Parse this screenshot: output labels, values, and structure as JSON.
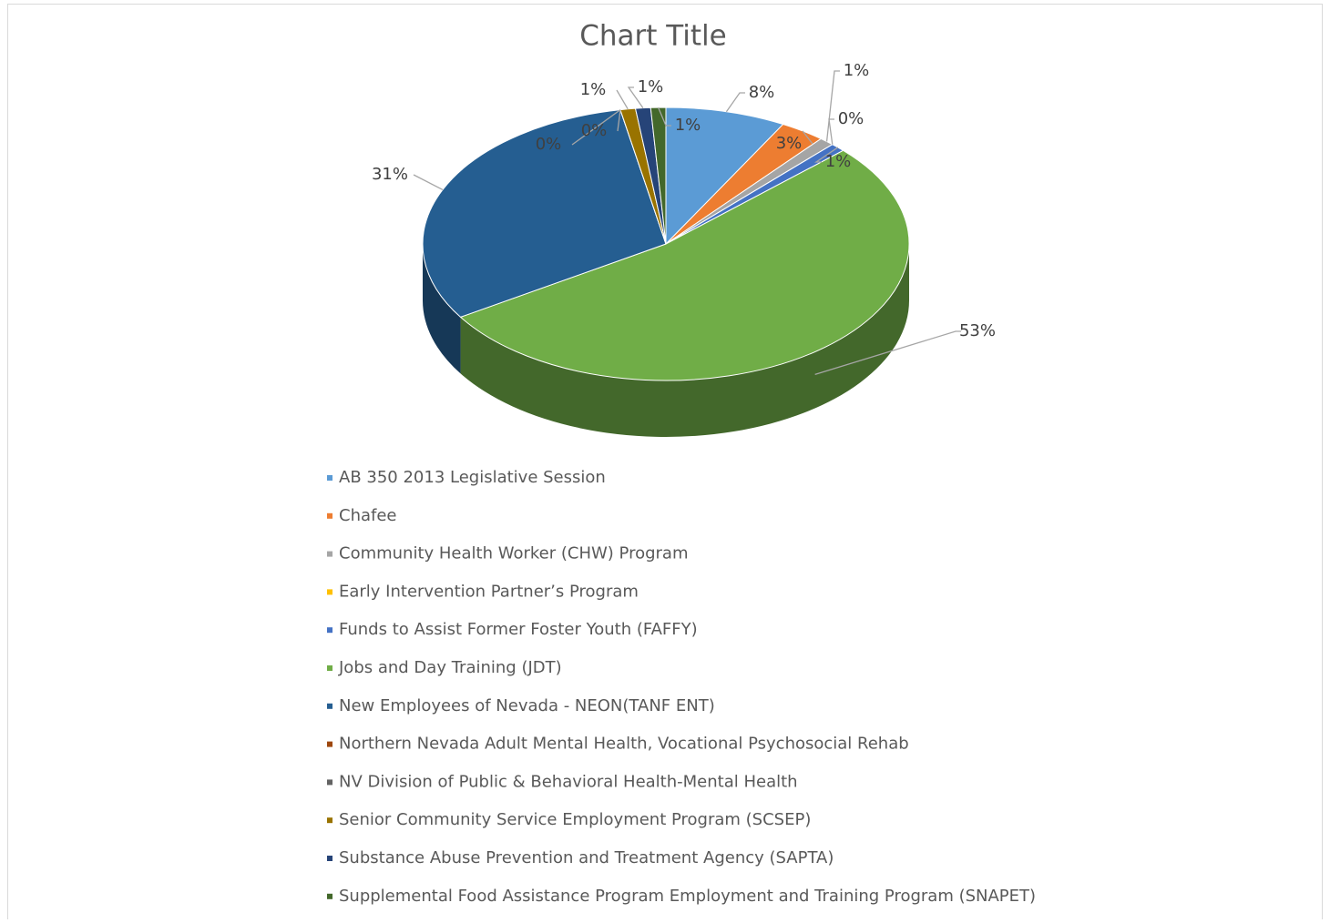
{
  "chart_data": {
    "type": "pie3d",
    "title": "Chart Title",
    "categories": [
      "AB 350 2013 Legislative Session",
      "Chafee",
      "Community Health Worker (CHW) Program",
      "Early Intervention Partner’s Program",
      "Funds to Assist Former Foster Youth (FAFFY)",
      "Jobs and Day Training (JDT)",
      "New Employees of Nevada - NEON(TANF ENT)",
      "Northern Nevada Adult Mental Health, Vocational Psychosocial Rehab",
      "NV Division of Public & Behavioral Health-Mental Health",
      "Senior Community Service Employment Program (SCSEP)",
      "Substance Abuse Prevention and Treatment Agency (SAPTA)",
      "Supplemental Food Assistance Program Employment and Training Program (SNAPET)"
    ],
    "values": [
      8,
      3,
      1,
      0,
      1,
      53,
      31,
      0,
      0,
      1,
      1,
      1
    ],
    "value_labels": [
      "8%",
      "3%",
      "1%",
      "0%",
      "1%",
      "53%",
      "31%",
      "0%",
      "0%",
      "1%",
      "1%",
      "1%"
    ],
    "colors": [
      "#5b9bd5",
      "#ed7d31",
      "#a5a5a5",
      "#ffc000",
      "#4472c4",
      "#70ad47",
      "#255e91",
      "#9e480e",
      "#636363",
      "#997300",
      "#264478",
      "#43682b"
    ],
    "legend": "bottom"
  }
}
